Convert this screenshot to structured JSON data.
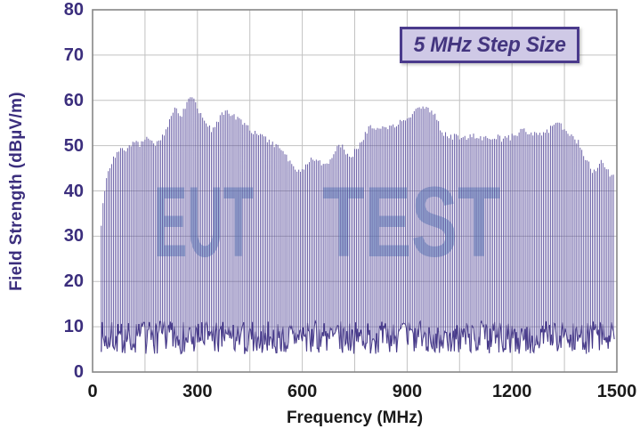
{
  "chart_data": {
    "type": "line",
    "subtype": "emission-spectrum-comb",
    "title": "",
    "xlabel": "Frequency (MHz)",
    "ylabel": "Field Strength (dBµV/m)",
    "xlim": [
      0,
      1500
    ],
    "ylim": [
      0,
      80
    ],
    "x_ticks": [
      0,
      300,
      600,
      900,
      1200,
      1500
    ],
    "y_ticks": [
      0,
      10,
      20,
      30,
      40,
      50,
      60,
      70,
      80
    ],
    "x_grid_step_mhz": 150,
    "y_grid_step_db": 10,
    "grid": "on",
    "annotation": "5 MHz Step Size",
    "watermark": "EUT TEST",
    "step_mhz": 5,
    "start_mhz": 25,
    "end_mhz": 1490,
    "noise_floor_range_db": [
      4.0,
      11.2
    ],
    "envelope_points_mhz_db": [
      [
        25,
        33
      ],
      [
        30,
        37
      ],
      [
        35,
        40
      ],
      [
        40,
        42.5
      ],
      [
        45,
        44
      ],
      [
        50,
        45.2
      ],
      [
        57,
        46.6
      ],
      [
        65,
        47.8
      ],
      [
        75,
        48.6
      ],
      [
        85,
        49
      ],
      [
        95,
        49.3
      ],
      [
        105,
        49.8
      ],
      [
        115,
        50.3
      ],
      [
        125,
        50.8
      ],
      [
        132,
        50.2
      ],
      [
        140,
        50.4
      ],
      [
        148,
        51
      ],
      [
        155,
        51.9
      ],
      [
        162,
        51.3
      ],
      [
        170,
        50.9
      ],
      [
        180,
        50.6
      ],
      [
        190,
        51
      ],
      [
        200,
        52
      ],
      [
        210,
        53.5
      ],
      [
        220,
        55.5
      ],
      [
        230,
        57.3
      ],
      [
        238,
        58.4
      ],
      [
        245,
        57.6
      ],
      [
        251,
        56.4
      ],
      [
        258,
        57.2
      ],
      [
        265,
        58.6
      ],
      [
        272,
        59.6
      ],
      [
        282,
        60.9
      ],
      [
        290,
        60
      ],
      [
        298,
        58.6
      ],
      [
        308,
        57
      ],
      [
        318,
        55.7
      ],
      [
        330,
        54.2
      ],
      [
        341,
        53.4
      ],
      [
        352,
        54.6
      ],
      [
        362,
        55.8
      ],
      [
        372,
        56.9
      ],
      [
        382,
        57.6
      ],
      [
        392,
        57.3
      ],
      [
        403,
        56.4
      ],
      [
        415,
        55.8
      ],
      [
        428,
        55
      ],
      [
        440,
        54.2
      ],
      [
        455,
        53.4
      ],
      [
        470,
        52.6
      ],
      [
        485,
        52
      ],
      [
        500,
        51.3
      ],
      [
        512,
        50.7
      ],
      [
        525,
        49.8
      ],
      [
        538,
        49.2
      ],
      [
        550,
        48
      ],
      [
        562,
        46.6
      ],
      [
        572,
        45.4
      ],
      [
        582,
        44.7
      ],
      [
        592,
        44.4
      ],
      [
        602,
        45
      ],
      [
        612,
        45.8
      ],
      [
        622,
        46.5
      ],
      [
        632,
        47.1
      ],
      [
        642,
        46.8
      ],
      [
        652,
        46.4
      ],
      [
        662,
        46.2
      ],
      [
        672,
        46.4
      ],
      [
        682,
        46.8
      ],
      [
        692,
        48
      ],
      [
        700,
        49.6
      ],
      [
        708,
        50.1
      ],
      [
        716,
        49.6
      ],
      [
        724,
        48.6
      ],
      [
        732,
        47.8
      ],
      [
        740,
        47.9
      ],
      [
        750,
        48.6
      ],
      [
        760,
        49.6
      ],
      [
        770,
        51
      ],
      [
        778,
        52.4
      ],
      [
        788,
        53.6
      ],
      [
        798,
        54.2
      ],
      [
        808,
        54.3
      ],
      [
        818,
        53.9
      ],
      [
        828,
        53.6
      ],
      [
        838,
        53.7
      ],
      [
        848,
        54
      ],
      [
        858,
        54.4
      ],
      [
        868,
        54.8
      ],
      [
        878,
        55.2
      ],
      [
        888,
        55.5
      ],
      [
        898,
        55.9
      ],
      [
        908,
        56.3
      ],
      [
        918,
        57
      ],
      [
        928,
        57.8
      ],
      [
        936,
        58.7
      ],
      [
        944,
        58.6
      ],
      [
        952,
        58.2
      ],
      [
        962,
        57.8
      ],
      [
        972,
        57.2
      ],
      [
        980,
        56.4
      ],
      [
        988,
        55.2
      ],
      [
        996,
        53.6
      ],
      [
        1004,
        52.8
      ],
      [
        1012,
        52.2
      ],
      [
        1022,
        51.8
      ],
      [
        1035,
        52
      ],
      [
        1048,
        51.7
      ],
      [
        1060,
        52
      ],
      [
        1072,
        51.7
      ],
      [
        1085,
        52.2
      ],
      [
        1098,
        51.7
      ],
      [
        1110,
        51.9
      ],
      [
        1122,
        51.6
      ],
      [
        1135,
        52.1
      ],
      [
        1148,
        51.7
      ],
      [
        1160,
        51.8
      ],
      [
        1172,
        51.5
      ],
      [
        1185,
        51.7
      ],
      [
        1198,
        51.9
      ],
      [
        1212,
        52.5
      ],
      [
        1225,
        53
      ],
      [
        1235,
        53.3
      ],
      [
        1245,
        53
      ],
      [
        1258,
        52.8
      ],
      [
        1270,
        52.6
      ],
      [
        1282,
        52.2
      ],
      [
        1292,
        52.5
      ],
      [
        1302,
        53.3
      ],
      [
        1312,
        54.1
      ],
      [
        1322,
        54.9
      ],
      [
        1330,
        55
      ],
      [
        1340,
        54.6
      ],
      [
        1352,
        53.6
      ],
      [
        1365,
        52.7
      ],
      [
        1378,
        51.4
      ],
      [
        1390,
        50.6
      ],
      [
        1400,
        49
      ],
      [
        1410,
        47.4
      ],
      [
        1420,
        45.8
      ],
      [
        1430,
        44.6
      ],
      [
        1438,
        44.2
      ],
      [
        1448,
        45.6
      ],
      [
        1456,
        46.4
      ],
      [
        1464,
        45.4
      ],
      [
        1472,
        44.4
      ],
      [
        1482,
        43.6
      ],
      [
        1490,
        43.2
      ]
    ],
    "colors": {
      "trace": "#4e4196",
      "noise_band": "#3c2f82",
      "grid": "#c2c2c2",
      "plot_border": "#868686",
      "y_axis_text": "#3b2e7d",
      "x_axis_text": "#1a1a1a",
      "annotation_text": "#43357f",
      "annotation_bg": "#cfc9e6",
      "annotation_border": "#4a3a8c",
      "watermark": "#5a90c4"
    }
  }
}
